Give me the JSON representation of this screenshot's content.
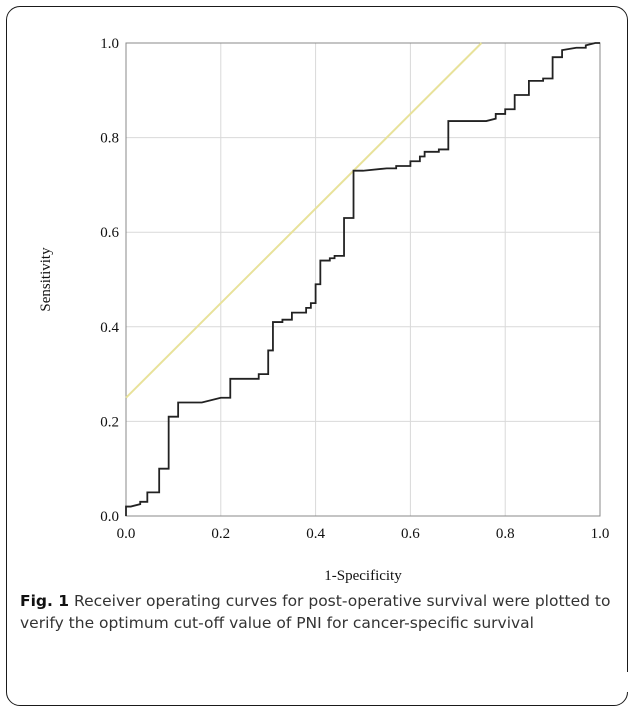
{
  "caption": {
    "label": "Fig. 1",
    "text": " Receiver operating curves for post-operative survival were plotted to verify the optimum cut-off value of PNI for cancer-specific survival"
  },
  "chart_data": {
    "type": "line",
    "xlabel": "1-Specificity",
    "ylabel": "Sensitivity",
    "xlim": [
      0,
      1
    ],
    "ylim": [
      0,
      1
    ],
    "xticks": [
      "0.0",
      "0.2",
      "0.4",
      "0.6",
      "0.8",
      "1.0"
    ],
    "yticks": [
      "0.0",
      "0.2",
      "0.4",
      "0.6",
      "0.8",
      "1.0"
    ],
    "grid": true,
    "colors": {
      "roc": "#222222",
      "reference": "#e8e29a",
      "grid": "#d9d9d9",
      "axis": "#888888"
    },
    "series": [
      {
        "x": [
          0.0,
          0.0,
          0.01,
          0.01,
          0.03,
          0.03,
          0.045,
          0.045,
          0.07,
          0.07,
          0.09,
          0.09,
          0.11,
          0.11,
          0.16,
          0.2,
          0.22,
          0.22,
          0.28,
          0.28,
          0.3,
          0.3,
          0.31,
          0.31,
          0.33,
          0.33,
          0.35,
          0.35,
          0.38,
          0.38,
          0.39,
          0.39,
          0.4,
          0.4,
          0.41,
          0.41,
          0.43,
          0.43,
          0.44,
          0.44,
          0.46,
          0.46,
          0.48,
          0.48,
          0.5,
          0.55,
          0.57,
          0.57,
          0.6,
          0.6,
          0.62,
          0.62,
          0.63,
          0.63,
          0.66,
          0.66,
          0.68,
          0.68,
          0.76,
          0.78,
          0.78,
          0.8,
          0.8,
          0.82,
          0.82,
          0.84,
          0.84,
          0.85,
          0.85,
          0.88,
          0.88,
          0.89,
          0.89,
          0.9,
          0.9,
          0.92,
          0.92,
          0.95,
          0.97,
          0.97,
          0.99,
          1.0
        ],
        "y": [
          0.0,
          0.02,
          0.02,
          0.02,
          0.025,
          0.03,
          0.03,
          0.05,
          0.05,
          0.1,
          0.1,
          0.21,
          0.21,
          0.24,
          0.24,
          0.25,
          0.25,
          0.29,
          0.29,
          0.3,
          0.3,
          0.35,
          0.35,
          0.41,
          0.41,
          0.415,
          0.415,
          0.43,
          0.43,
          0.44,
          0.44,
          0.45,
          0.45,
          0.49,
          0.49,
          0.54,
          0.54,
          0.545,
          0.545,
          0.55,
          0.55,
          0.63,
          0.63,
          0.73,
          0.73,
          0.735,
          0.735,
          0.74,
          0.74,
          0.75,
          0.75,
          0.76,
          0.76,
          0.77,
          0.77,
          0.775,
          0.775,
          0.835,
          0.835,
          0.84,
          0.85,
          0.85,
          0.86,
          0.86,
          0.89,
          0.89,
          0.89,
          0.89,
          0.92,
          0.92,
          0.925,
          0.925,
          0.925,
          0.925,
          0.97,
          0.97,
          0.985,
          0.99,
          0.99,
          0.995,
          1.0,
          1.0
        ]
      },
      {
        "x": [
          0.0,
          0.75
        ],
        "y": [
          0.25,
          1.0
        ]
      }
    ]
  }
}
